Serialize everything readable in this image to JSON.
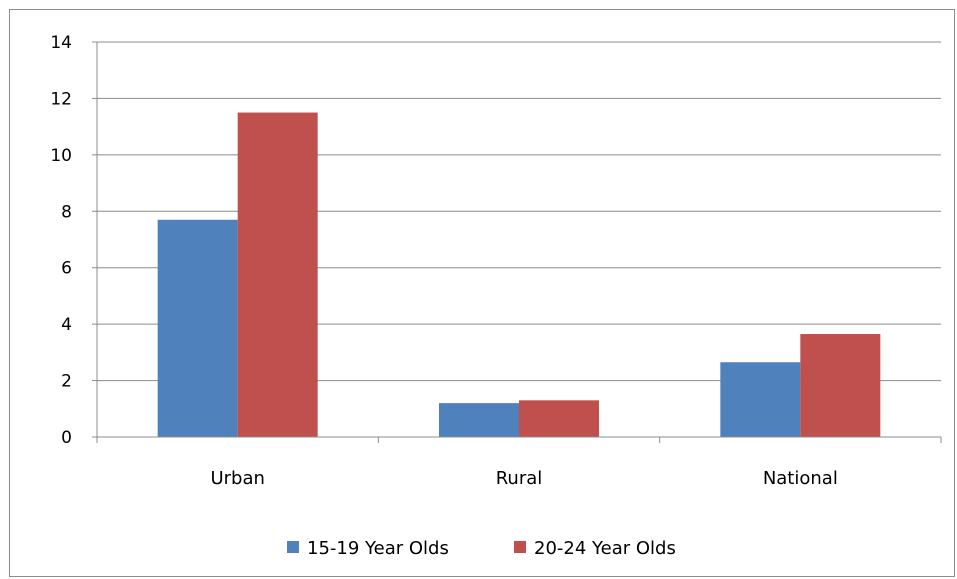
{
  "chart_data": {
    "type": "bar",
    "categories": [
      "Urban",
      "Rural",
      "National"
    ],
    "series": [
      {
        "name": "15-19 Year Olds",
        "values": [
          7.7,
          1.2,
          2.65
        ],
        "color": "#4f81bd"
      },
      {
        "name": "20-24 Year Olds",
        "values": [
          11.5,
          1.3,
          3.65
        ],
        "color": "#c0504d"
      }
    ],
    "title": "",
    "xlabel": "",
    "ylabel": "",
    "ylim": [
      0,
      14
    ],
    "yticks": [
      0,
      2,
      4,
      6,
      8,
      10,
      12,
      14
    ],
    "grid": true,
    "legend_position": "bottom"
  }
}
